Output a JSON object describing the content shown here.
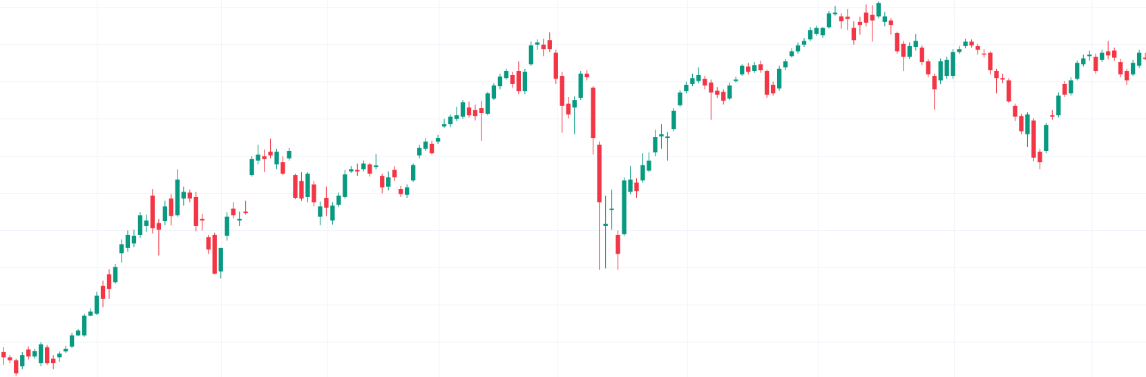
{
  "chart_data": {
    "type": "candlestick",
    "up_color": "#089981",
    "down_color": "#f23645",
    "grid": true,
    "grid_color": "#f0f3fa",
    "categories": [
      null,
      null,
      null,
      null,
      null,
      null,
      null,
      null,
      null,
      null,
      null,
      null,
      null,
      null,
      null,
      null,
      null,
      null,
      null,
      null,
      null,
      null,
      null,
      null,
      null,
      null,
      null,
      null,
      null,
      null,
      null,
      null,
      null,
      null,
      null,
      null,
      null,
      null,
      null,
      null,
      null,
      null,
      null,
      null,
      null,
      null,
      null,
      null,
      null,
      null,
      null,
      null,
      null,
      null,
      null,
      null,
      null,
      null,
      null,
      null,
      null,
      null,
      null,
      null,
      null,
      null,
      null,
      null,
      null,
      null,
      null,
      null,
      null,
      null,
      null,
      null,
      null,
      null,
      null,
      null,
      null,
      null,
      null,
      null,
      null,
      null,
      null,
      null,
      null,
      null,
      null,
      null,
      null,
      null,
      null,
      null,
      null,
      null,
      null,
      null,
      null,
      null,
      null,
      null,
      null,
      null,
      null,
      null,
      null,
      null,
      null,
      null,
      null,
      null,
      null,
      null,
      null,
      null,
      null,
      null,
      null,
      null,
      null,
      null,
      null,
      null,
      null,
      null,
      null,
      null,
      null,
      null,
      null,
      null,
      null,
      null,
      null,
      null,
      null,
      null,
      null,
      null,
      null,
      null,
      null,
      null,
      null,
      null,
      null,
      null,
      null,
      null,
      null,
      null,
      null,
      null,
      null,
      null,
      null,
      null,
      null,
      null,
      null,
      null,
      null,
      null,
      null,
      null,
      null,
      null,
      null,
      null,
      null,
      null,
      null,
      null,
      null,
      null,
      null,
      null,
      null,
      null,
      null,
      null,
      null
    ],
    "open": [
      7.3,
      5.9,
      5.1,
      3.5,
      8.0,
      6.1,
      4.3,
      8.6,
      5.5,
      5.9,
      7.5,
      8.8,
      11.8,
      11.8,
      17.1,
      17.6,
      25.1,
      28.2,
      26.1,
      33.9,
      35.3,
      36.5,
      38.8,
      41.2,
      49.4,
      42.0,
      42.5,
      48.6,
      44.1,
      48.6,
      50.2,
      49.0,
      43.1,
      38.2,
      38.8,
      29.0,
      38.6,
      45.9,
      42.7,
      45.1,
      54.9,
      58.8,
      60.0,
      61.2,
      57.8,
      58.4,
      59.4,
      54.9,
      53.3,
      49.0,
      52.4,
      43.7,
      48.8,
      42.7,
      46.9,
      49.0,
      55.9,
      56.3,
      56.5,
      57.8,
      57.1,
      54.7,
      51.8,
      56.3,
      51.2,
      49.6,
      53.5,
      60.2,
      62.0,
      63.3,
      63.9,
      68.0,
      68.6,
      70.0,
      70.6,
      73.1,
      72.4,
      72.9,
      71.4,
      75.5,
      78.8,
      81.0,
      81.8,
      82.9,
      77.5,
      84.7,
      90.0,
      90.0,
      91.2,
      87.8,
      81.6,
      74.1,
      73.1,
      75.7,
      82.2,
      78.4,
      63.1,
      41.2,
      45.5,
      38.8,
      39.0,
      50.4,
      52.9,
      53.5,
      56.1,
      61.0,
      65.3,
      64.9,
      67.3,
      73.7,
      77.5,
      79.4,
      80.2,
      80.8,
      79.8,
      77.6,
      77.3,
      75.5,
      80.2,
      82.0,
      84.1,
      82.9,
      84.7,
      82.9,
      79.2,
      78.2,
      83.9,
      86.9,
      88.2,
      90.0,
      91.4,
      92.9,
      92.5,
      94.7,
      98.2,
      97.6,
      97.5,
      94.5,
      96.1,
      98.6,
      98.0,
      97.6,
      96.1,
      96.5,
      93.1,
      90.2,
      86.7,
      89.4,
      89.2,
      85.5,
      81.6,
      80.4,
      81.6,
      81.6,
      88.0,
      89.6,
      90.8,
      89.6,
      87.6,
      87.8,
      82.9,
      81.0,
      80.4,
      73.5,
      70.8,
      65.9,
      69.6,
      61.2,
      61.4,
      71.0,
      71.0,
      79.4,
      76.9,
      80.8,
      84.7,
      86.9,
      86.7,
      85.9,
      88.2,
      88.4,
      85.3,
      82.9,
      82.0,
      84.3,
      86.5
    ],
    "high": [
      8.6,
      6.5,
      5.5,
      7.3,
      8.8,
      8.2,
      10.0,
      9.2,
      6.5,
      7.5,
      9.0,
      12.5,
      13.5,
      17.6,
      19.0,
      23.5,
      26.5,
      29.6,
      31.0,
      37.6,
      40.0,
      40.2,
      44.9,
      44.3,
      51.2,
      43.1,
      48.0,
      49.8,
      56.5,
      51.8,
      51.0,
      50.4,
      44.5,
      38.8,
      39.4,
      35.3,
      44.9,
      47.6,
      45.1,
      48.0,
      60.0,
      63.1,
      61.8,
      64.7,
      62.0,
      60.0,
      62.2,
      55.3,
      55.7,
      55.7,
      53.3,
      47.8,
      51.8,
      47.6,
      50.2,
      56.3,
      57.3,
      58.0,
      58.8,
      58.2,
      60.6,
      55.3,
      55.9,
      57.3,
      52.0,
      52.4,
      58.0,
      63.1,
      64.9,
      64.1,
      65.7,
      70.0,
      71.2,
      73.3,
      75.1,
      74.7,
      73.9,
      74.9,
      77.3,
      79.6,
      82.2,
      83.5,
      82.7,
      85.5,
      83.5,
      90.8,
      91.4,
      91.6,
      93.3,
      88.6,
      82.7,
      75.9,
      76.1,
      82.9,
      83.1,
      78.8,
      63.9,
      49.4,
      51.0,
      40.0,
      54.3,
      57.3,
      54.1,
      60.8,
      61.0,
      67.1,
      68.6,
      66.5,
      72.9,
      77.8,
      80.0,
      82.2,
      83.9,
      81.6,
      80.6,
      78.6,
      78.0,
      79.8,
      81.4,
      84.7,
      85.1,
      85.3,
      85.7,
      83.3,
      80.0,
      84.3,
      86.1,
      89.0,
      90.6,
      91.8,
      94.7,
      95.1,
      94.7,
      99.0,
      100.4,
      98.4,
      99.6,
      96.3,
      97.5,
      100.8,
      100.6,
      101.6,
      98.8,
      97.1,
      93.5,
      91.0,
      90.6,
      92.9,
      89.8,
      86.1,
      82.2,
      86.3,
      86.7,
      88.8,
      89.6,
      91.6,
      91.4,
      90.2,
      88.8,
      88.2,
      83.5,
      82.2,
      81.0,
      74.1,
      71.4,
      71.8,
      70.2,
      62.0,
      69.0,
      72.4,
      77.1,
      80.2,
      81.2,
      85.7,
      87.3,
      88.4,
      87.6,
      88.6,
      91.0,
      89.2,
      86.1,
      83.5,
      85.9,
      88.6,
      87.8
    ],
    "low": [
      3.9,
      4.3,
      1.0,
      2.7,
      5.3,
      5.5,
      3.5,
      3.9,
      2.7,
      4.7,
      7.1,
      8.4,
      11.6,
      11.4,
      16.9,
      17.3,
      19.4,
      21.6,
      25.7,
      31.4,
      34.3,
      35.5,
      38.0,
      39.6,
      39.2,
      33.3,
      41.4,
      41.4,
      43.7,
      46.7,
      47.6,
      39.8,
      40.0,
      33.7,
      28.2,
      27.1,
      37.3,
      43.3,
      41.2,
      44.3,
      54.5,
      57.8,
      55.7,
      59.4,
      56.5,
      54.9,
      58.8,
      48.4,
      48.0,
      47.6,
      46.5,
      41.4,
      43.9,
      41.6,
      46.3,
      48.6,
      55.5,
      54.7,
      55.9,
      54.5,
      56.5,
      50.0,
      50.8,
      53.3,
      49.0,
      48.8,
      53.1,
      59.4,
      61.4,
      60.4,
      63.3,
      67.6,
      67.8,
      69.4,
      70.0,
      70.4,
      69.6,
      64.1,
      71.0,
      75.1,
      78.0,
      80.6,
      78.4,
      76.7,
      76.7,
      84.3,
      88.6,
      86.9,
      88.0,
      79.4,
      66.3,
      70.2,
      65.9,
      75.1,
      80.4,
      60.4,
      29.4,
      29.8,
      40.2,
      29.4,
      38.6,
      49.8,
      48.8,
      52.9,
      55.7,
      60.0,
      62.0,
      58.8,
      66.7,
      73.3,
      76.9,
      78.8,
      79.6,
      78.0,
      69.8,
      75.7,
      73.9,
      75.1,
      79.8,
      81.6,
      82.0,
      82.4,
      82.4,
      75.7,
      76.3,
      77.6,
      83.1,
      86.5,
      87.6,
      89.4,
      91.0,
      92.4,
      91.8,
      94.3,
      97.8,
      94.3,
      93.9,
      90.0,
      92.7,
      94.9,
      90.8,
      97.1,
      94.9,
      92.7,
      87.6,
      82.9,
      86.1,
      88.4,
      84.5,
      81.2,
      72.5,
      79.4,
      80.8,
      80.8,
      87.5,
      89.0,
      89.2,
      87.3,
      86.5,
      82.0,
      76.9,
      79.6,
      74.3,
      69.4,
      65.9,
      62.5,
      58.6,
      56.5,
      60.8,
      69.8,
      70.4,
      75.9,
      76.3,
      80.4,
      84.1,
      85.7,
      82.2,
      85.3,
      86.1,
      85.7,
      81.2,
      79.2,
      81.6,
      83.7,
      85.9
    ],
    "close": [
      5.9,
      5.1,
      1.6,
      6.5,
      6.1,
      7.6,
      9.4,
      4.3,
      4.3,
      6.9,
      8.2,
      11.8,
      13.1,
      17.1,
      18.2,
      22.5,
      21.6,
      24.3,
      30.2,
      36.3,
      38.8,
      38.6,
      44.1,
      42.7,
      40.6,
      40.2,
      46.5,
      43.9,
      53.7,
      50.4,
      48.6,
      41.2,
      42.7,
      34.9,
      28.4,
      35.3,
      43.7,
      44.1,
      43.1,
      44.7,
      59.2,
      60.4,
      59.2,
      60.2,
      61.2,
      55.3,
      61.4,
      48.8,
      48.6,
      55.3,
      47.6,
      46.5,
      46.1,
      46.7,
      49.4,
      55.1,
      56.5,
      55.9,
      58.0,
      55.3,
      57.5,
      51.6,
      54.3,
      54.3,
      49.8,
      51.6,
      57.6,
      62.2,
      63.9,
      60.8,
      64.9,
      68.6,
      70.6,
      71.0,
      74.5,
      71.0,
      70.8,
      71.6,
      76.9,
      79.0,
      81.4,
      82.9,
      79.4,
      77.5,
      82.7,
      89.8,
      90.6,
      88.8,
      88.8,
      80.8,
      73.5,
      71.2,
      75.1,
      82.2,
      81.2,
      64.9,
      47.6,
      41.8,
      45.9,
      33.7,
      53.5,
      53.7,
      50.6,
      57.6,
      58.8,
      65.1,
      65.9,
      65.3,
      72.2,
      77.1,
      79.2,
      81.0,
      81.8,
      79.0,
      77.1,
      76.5,
      74.9,
      79.0,
      80.6,
      84.3,
      82.7,
      84.5,
      83.1,
      76.5,
      76.9,
      83.5,
      85.5,
      88.2,
      89.8,
      91.0,
      93.9,
      94.5,
      94.5,
      98.4,
      98.6,
      96.3,
      96.9,
      91.2,
      95.3,
      95.9,
      96.5,
      101.2,
      97.6,
      95.3,
      88.2,
      86.7,
      89.6,
      91.0,
      85.3,
      82.0,
      78.0,
      85.5,
      85.9,
      88.0,
      88.8,
      90.8,
      89.8,
      88.6,
      87.3,
      83.1,
      81.0,
      80.6,
      74.7,
      70.6,
      66.7,
      71.2,
      59.6,
      58.4,
      68.4,
      70.6,
      76.3,
      76.5,
      80.4,
      85.1,
      86.3,
      87.3,
      82.9,
      87.8,
      87.1,
      86.5,
      82.0,
      80.4,
      85.1,
      87.8,
      86.1
    ],
    "xlim": [
      -0.59,
      184.1
    ],
    "xticks": [
      15.1,
      35.1,
      52.2,
      70.2,
      89.3,
      110.2,
      131.3,
      153.2,
      175.4
    ],
    "ylim": [
      0.6,
      102
    ],
    "yticks": [
      10,
      20,
      30,
      40,
      50,
      60,
      70,
      80,
      90,
      100
    ]
  }
}
